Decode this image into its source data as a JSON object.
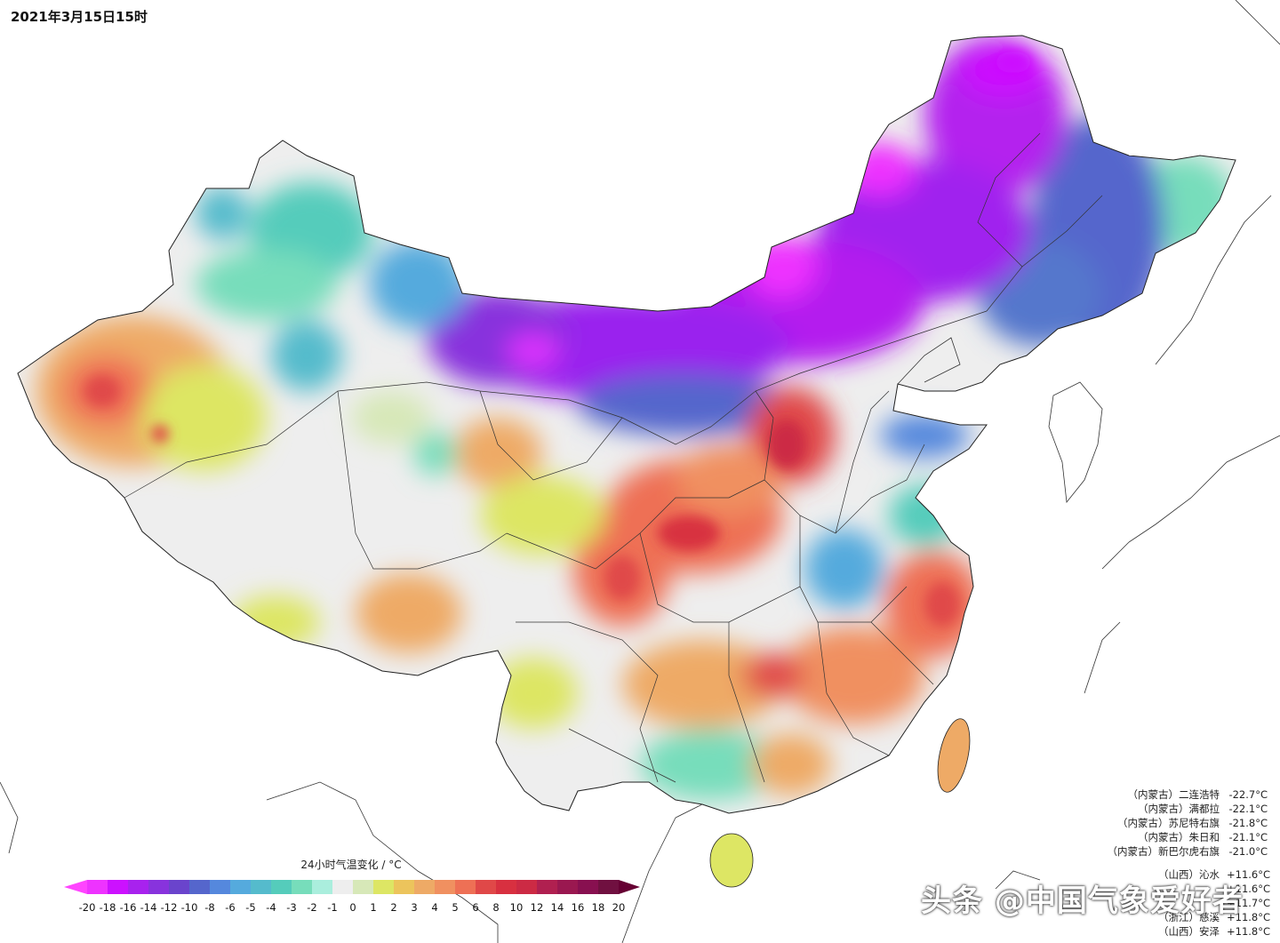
{
  "map": {
    "title": "2021年3月15日15时",
    "legend_title": "24小时气温变化 / °C",
    "legend_labels": [
      "-20",
      "-18",
      "-16",
      "-14",
      "-12",
      "-10",
      "-8",
      "-6",
      "-5",
      "-4",
      "-3",
      "-2",
      "-1",
      "0",
      "1",
      "2",
      "3",
      "4",
      "5",
      "6",
      "8",
      "10",
      "12",
      "14",
      "16",
      "18",
      "20"
    ],
    "legend_colors": [
      "#ee33ff",
      "#cc11ff",
      "#a822ee",
      "#8833dd",
      "#6a44cc",
      "#5566cc",
      "#5588dd",
      "#55aadd",
      "#55bbcc",
      "#55ccbb",
      "#77ddbb",
      "#aaeedd",
      "#eeeeee",
      "#d7e8b8",
      "#dde664",
      "#ecc45c",
      "#eeaa66",
      "#f09060",
      "#ee7055",
      "#e04848",
      "#d83040",
      "#cc2a44",
      "#b02050",
      "#9a1850",
      "#881050",
      "#701040"
    ],
    "min_extreme_color": "#ff44ff",
    "max_extreme_color": "#660033",
    "cold_stations": [
      {
        "name": "（内蒙古）二连浩特",
        "value": "-22.7°C"
      },
      {
        "name": "（内蒙古）满都拉",
        "value": "-22.1°C"
      },
      {
        "name": "（内蒙古）苏尼特右旗",
        "value": "-21.8°C"
      },
      {
        "name": "（内蒙古）朱日和",
        "value": "-21.1°C"
      },
      {
        "name": "（内蒙古）新巴尔虎右旗",
        "value": "-21.0°C"
      }
    ],
    "warm_stations": [
      {
        "name": "（山西）沁水",
        "value": "+11.6°C"
      },
      {
        "name": "",
        "value": "+11.6°C"
      },
      {
        "name": "",
        "value": "+11.7°C"
      },
      {
        "name": "（浙江）慈溪",
        "value": "+11.8°C"
      },
      {
        "name": "（山西）安泽",
        "value": "+11.8°C"
      }
    ],
    "watermark": "头条 @中国气象爱好者"
  }
}
